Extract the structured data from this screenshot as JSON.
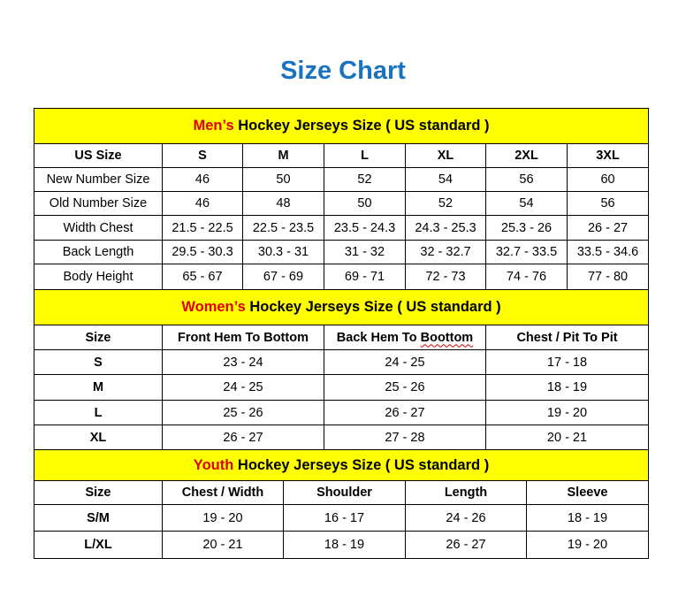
{
  "title": "Size Chart",
  "men": {
    "band_highlight": "Men’s",
    "band_rest": " Hockey Jerseys Size ( US standard )",
    "headers": [
      "US Size",
      "S",
      "M",
      "L",
      "XL",
      "2XL",
      "3XL"
    ],
    "rows": [
      [
        "New Number Size",
        "46",
        "50",
        "52",
        "54",
        "56",
        "60"
      ],
      [
        "Old Number Size",
        "46",
        "48",
        "50",
        "52",
        "54",
        "56"
      ],
      [
        "Width Chest",
        "21.5 - 22.5",
        "22.5 - 23.5",
        "23.5 - 24.3",
        "24.3 - 25.3",
        "25.3 - 26",
        "26 - 27"
      ],
      [
        "Back Length",
        "29.5 - 30.3",
        "30.3 - 31",
        "31 - 32",
        "32 - 32.7",
        "32.7 - 33.5",
        "33.5 - 34.6"
      ],
      [
        "Body Height",
        "65 - 67",
        "67 - 69",
        "69 - 71",
        "72 - 73",
        "74 - 76",
        "77 - 80"
      ]
    ]
  },
  "women": {
    "band_highlight": "Women’s",
    "band_rest": " Hockey Jerseys Size ( US standard )",
    "headers": [
      "Size",
      "Front Hem To Bottom",
      "Back Hem To Boottom",
      "Chest / Pit To Pit"
    ],
    "rows": [
      [
        "S",
        "23 - 24",
        "24 - 25",
        "17 - 18"
      ],
      [
        "M",
        "24 - 25",
        "25 - 26",
        "18 - 19"
      ],
      [
        "L",
        "25 - 26",
        "26 - 27",
        "19 - 20"
      ],
      [
        "XL",
        "26 - 27",
        "27 - 28",
        "20 - 21"
      ]
    ]
  },
  "youth": {
    "band_highlight": "Youth",
    "band_rest": " Hockey Jerseys Size ( US standard )",
    "headers": [
      "Size",
      "Chest / Width",
      "Shoulder",
      "Length",
      "Sleeve"
    ],
    "rows": [
      [
        "S/M",
        "19 - 20",
        "16 - 17",
        "24 - 26",
        "18 - 19"
      ],
      [
        "L/XL",
        "20 - 21",
        "18 - 19",
        "26 - 27",
        "19 - 20"
      ]
    ]
  },
  "colors": {
    "title": "#1a73c0",
    "band": "#ffff00",
    "highlight": "#e00000"
  }
}
